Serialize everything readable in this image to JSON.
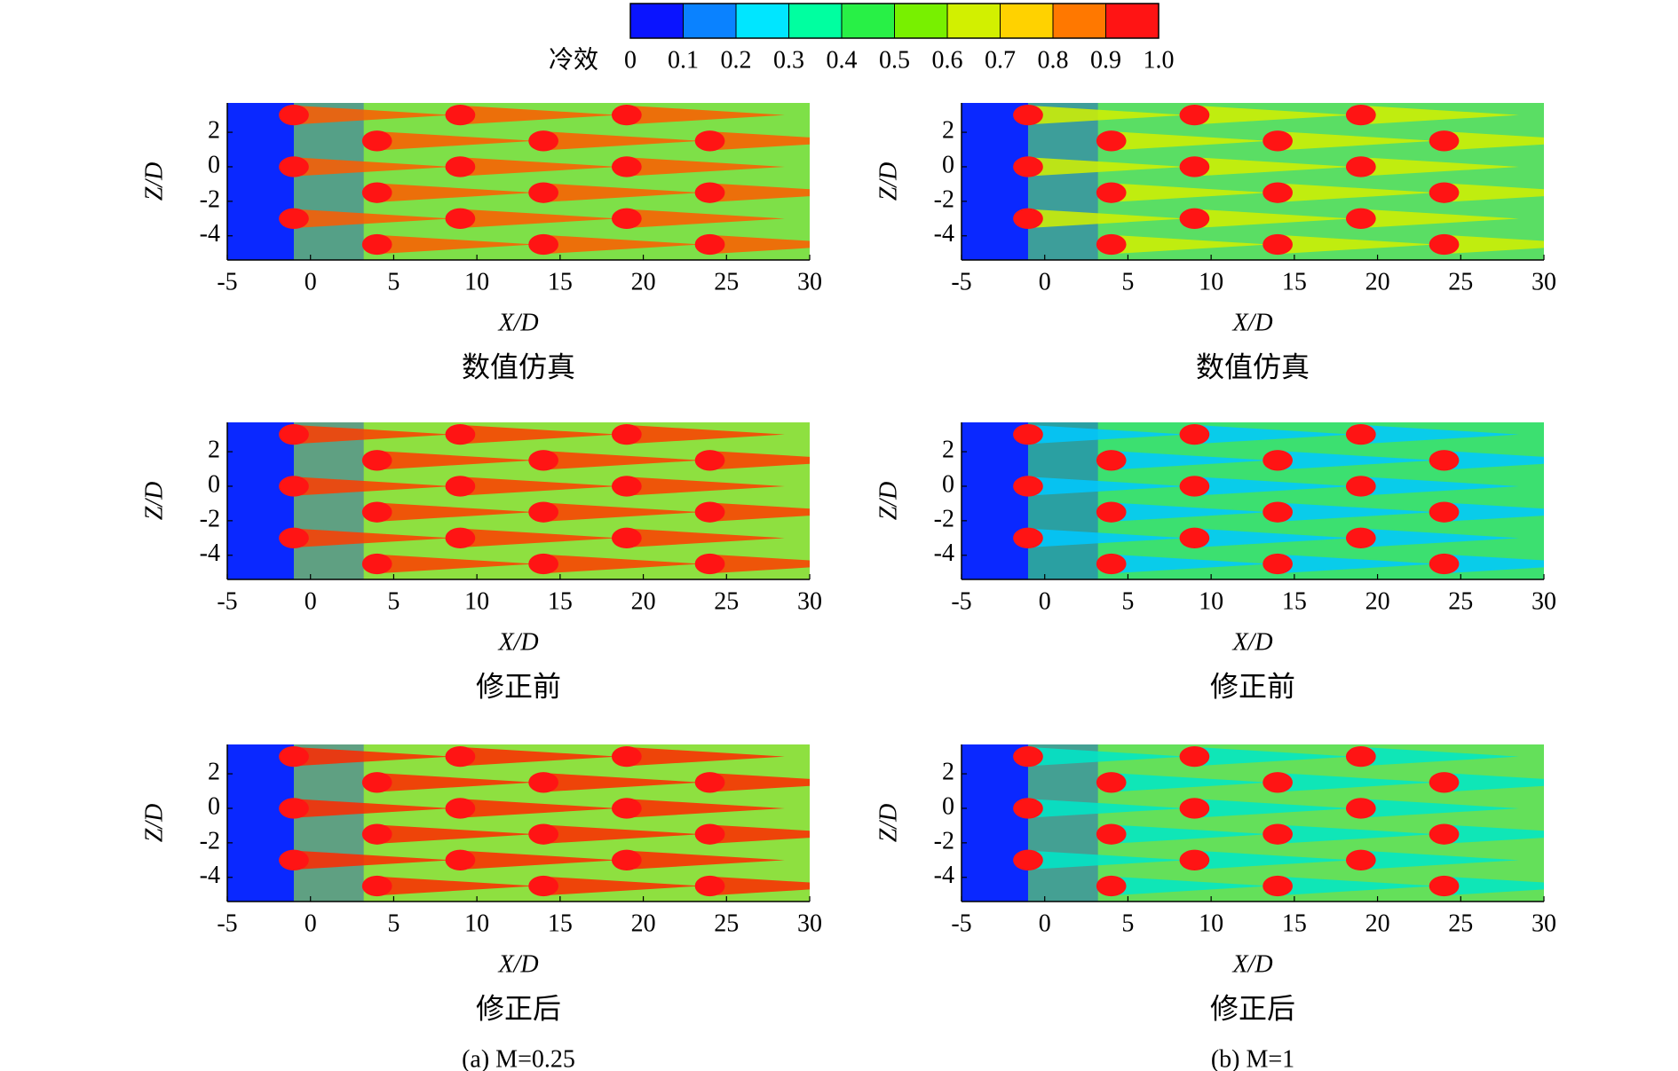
{
  "colorbar": {
    "label": "冷效",
    "ticks": [
      0,
      0.1,
      0.2,
      0.3,
      0.4,
      0.5,
      0.6,
      0.7,
      0.8,
      0.9,
      {
        "value": 1,
        "label": "1.0"
      }
    ],
    "colors": [
      "#0a14ff",
      "#0a82ff",
      "#00e6ff",
      "#00ffa0",
      "#28f046",
      "#78f000",
      "#d2f000",
      "#ffd200",
      "#ff7800",
      "#ff1414"
    ]
  },
  "captions": [
    "(a) M=0.25",
    "(b) M=1"
  ],
  "chart_data": [
    {
      "type": "contour",
      "title": "数值仿真",
      "xlabel": "X/D",
      "ylabel": "Z/D",
      "xlim": [
        -5,
        30
      ],
      "xticks": [
        -5,
        0,
        5,
        10,
        15,
        20,
        25,
        30
      ],
      "ylim": [
        -5.4,
        3.7
      ],
      "yticks": [
        -4,
        -2,
        0,
        2
      ],
      "holes": {
        "x": [
          -1,
          9,
          19,
          4,
          14,
          24,
          -1,
          9,
          19,
          4,
          14,
          24,
          -1,
          9,
          19,
          4,
          14,
          24
        ],
        "z": [
          3,
          3,
          3,
          1.5,
          1.5,
          1.5,
          0,
          0,
          0,
          -1.5,
          -1.5,
          -1.5,
          -3,
          -3,
          -3,
          -4.5,
          -4.5,
          -4.5
        ]
      },
      "field_color": "#7ee048",
      "tail_color": "#ff5a00",
      "hole_color": "#ff1414",
      "cold_color": "#0a28ff"
    },
    {
      "type": "contour",
      "title": "数值仿真",
      "xlabel": "X/D",
      "ylabel": "Z/D",
      "xlim": [
        -5,
        30
      ],
      "xticks": [
        -5,
        0,
        5,
        10,
        15,
        20,
        25,
        30
      ],
      "ylim": [
        -5.4,
        3.7
      ],
      "yticks": [
        -4,
        -2,
        0,
        2
      ],
      "holes": {
        "x": [
          -1,
          9,
          19,
          4,
          14,
          24,
          -1,
          9,
          19,
          4,
          14,
          24,
          -1,
          9,
          19,
          4,
          14,
          24
        ],
        "z": [
          3,
          3,
          3,
          1.5,
          1.5,
          1.5,
          0,
          0,
          0,
          -1.5,
          -1.5,
          -1.5,
          -3,
          -3,
          -3,
          -4.5,
          -4.5,
          -4.5
        ]
      },
      "field_color": "#5ade64",
      "tail_color": "#d2f000",
      "hole_color": "#ff1414",
      "cold_color": "#0a28ff"
    },
    {
      "type": "contour",
      "title": "修正前",
      "xlabel": "X/D",
      "ylabel": "Z/D",
      "xlim": [
        -5,
        30
      ],
      "xticks": [
        -5,
        0,
        5,
        10,
        15,
        20,
        25,
        30
      ],
      "ylim": [
        -5.4,
        3.7
      ],
      "yticks": [
        -4,
        -2,
        0,
        2
      ],
      "holes": {
        "x": [
          -1,
          9,
          19,
          4,
          14,
          24,
          -1,
          9,
          19,
          4,
          14,
          24,
          -1,
          9,
          19,
          4,
          14,
          24
        ],
        "z": [
          3,
          3,
          3,
          1.5,
          1.5,
          1.5,
          0,
          0,
          0,
          -1.5,
          -1.5,
          -1.5,
          -3,
          -3,
          -3,
          -4.5,
          -4.5,
          -4.5
        ]
      },
      "field_color": "#8ee040",
      "tail_color": "#ff3c00",
      "hole_color": "#ff1414",
      "cold_color": "#0a28ff"
    },
    {
      "type": "contour",
      "title": "修正前",
      "xlabel": "X/D",
      "ylabel": "Z/D",
      "xlim": [
        -5,
        30
      ],
      "xticks": [
        -5,
        0,
        5,
        10,
        15,
        20,
        25,
        30
      ],
      "ylim": [
        -5.4,
        3.7
      ],
      "yticks": [
        -4,
        -2,
        0,
        2
      ],
      "holes": {
        "x": [
          -1,
          9,
          19,
          4,
          14,
          24,
          -1,
          9,
          19,
          4,
          14,
          24,
          -1,
          9,
          19,
          4,
          14,
          24
        ],
        "z": [
          3,
          3,
          3,
          1.5,
          1.5,
          1.5,
          0,
          0,
          0,
          -1.5,
          -1.5,
          -1.5,
          -3,
          -3,
          -3,
          -4.5,
          -4.5,
          -4.5
        ]
      },
      "field_color": "#3ce070",
      "tail_color": "#00c8ff",
      "hole_color": "#ff1414",
      "cold_color": "#0a28ff"
    },
    {
      "type": "contour",
      "title": "修正后",
      "xlabel": "X/D",
      "ylabel": "Z/D",
      "xlim": [
        -5,
        30
      ],
      "xticks": [
        -5,
        0,
        5,
        10,
        15,
        20,
        25,
        30
      ],
      "ylim": [
        -5.4,
        3.7
      ],
      "yticks": [
        -4,
        -2,
        0,
        2
      ],
      "holes": {
        "x": [
          -1,
          9,
          19,
          4,
          14,
          24,
          -1,
          9,
          19,
          4,
          14,
          24,
          -1,
          9,
          19,
          4,
          14,
          24
        ],
        "z": [
          3,
          3,
          3,
          1.5,
          1.5,
          1.5,
          0,
          0,
          0,
          -1.5,
          -1.5,
          -1.5,
          -3,
          -3,
          -3,
          -4.5,
          -4.5,
          -4.5
        ]
      },
      "field_color": "#8ee040",
      "tail_color": "#ff2800",
      "hole_color": "#ff1414",
      "cold_color": "#0a28ff"
    },
    {
      "type": "contour",
      "title": "修正后",
      "xlabel": "X/D",
      "ylabel": "Z/D",
      "xlim": [
        -5,
        30
      ],
      "xticks": [
        -5,
        0,
        5,
        10,
        15,
        20,
        25,
        30
      ],
      "ylim": [
        -5.4,
        3.7
      ],
      "yticks": [
        -4,
        -2,
        0,
        2
      ],
      "holes": {
        "x": [
          -1,
          9,
          19,
          4,
          14,
          24,
          -1,
          9,
          19,
          4,
          14,
          24,
          -1,
          9,
          19,
          4,
          14,
          24
        ],
        "z": [
          3,
          3,
          3,
          1.5,
          1.5,
          1.5,
          0,
          0,
          0,
          -1.5,
          -1.5,
          -1.5,
          -3,
          -3,
          -3,
          -4.5,
          -4.5,
          -4.5
        ]
      },
      "field_color": "#64e05a",
      "tail_color": "#00e6c8",
      "hole_color": "#ff1414",
      "cold_color": "#0a28ff"
    }
  ]
}
